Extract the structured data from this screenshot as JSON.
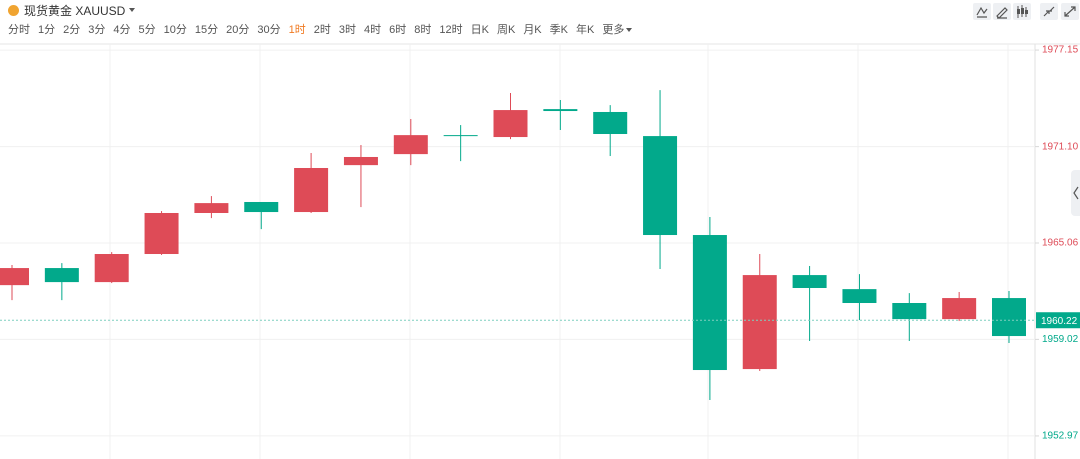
{
  "toolbar": {
    "symbol": "现货黄金 XAUUSD",
    "intervals": [
      "分时",
      "1分",
      "2分",
      "3分",
      "4分",
      "5分",
      "10分",
      "15分",
      "20分",
      "30分",
      "1时",
      "2时",
      "3时",
      "4时",
      "6时",
      "8时",
      "12时",
      "日K",
      "周K",
      "月K",
      "季K",
      "年K",
      "更多"
    ],
    "active_interval": 10
  },
  "chart_data": {
    "type": "candlestick",
    "open": [
      1962.42,
      1963.49,
      1962.61,
      1964.37,
      1966.94,
      1967.63,
      1967.0,
      1969.94,
      1970.63,
      1971.82,
      1971.7,
      1973.45,
      1973.27,
      1971.76,
      1965.56,
      1957.16,
      1963.05,
      1962.17,
      1961.3,
      1960.29,
      1961.61
    ],
    "high": [
      1963.68,
      1963.8,
      1964.49,
      1967.06,
      1968.0,
      1967.63,
      1970.7,
      1971.2,
      1972.83,
      1972.45,
      1974.46,
      1974.02,
      1973.7,
      1974.64,
      1966.69,
      1964.37,
      1963.62,
      1963.11,
      1961.92,
      1961.99,
      1962.05
    ],
    "low": [
      1961.48,
      1961.48,
      1962.55,
      1964.31,
      1966.62,
      1965.93,
      1966.94,
      1967.31,
      1969.94,
      1970.19,
      1971.57,
      1972.14,
      1970.51,
      1963.43,
      1955.22,
      1957.04,
      1958.92,
      1960.23,
      1958.92,
      1960.17,
      1958.79
    ],
    "close": [
      1963.49,
      1962.61,
      1964.37,
      1966.94,
      1967.56,
      1967.0,
      1969.76,
      1970.45,
      1971.82,
      1971.76,
      1973.39,
      1973.33,
      1971.89,
      1965.56,
      1957.1,
      1963.05,
      1962.24,
      1961.3,
      1960.29,
      1961.61,
      1959.23
    ],
    "up_color": "#de4b57",
    "down_color": "#02a98b",
    "ylim": [
      1952.59,
      1977.53
    ],
    "yticks": [
      1977.15,
      {
        "value": 1971.1,
        "label": "1971.10"
      },
      1965.06,
      1959.02,
      1952.97
    ],
    "last_price": 1960.22,
    "grid": true
  }
}
